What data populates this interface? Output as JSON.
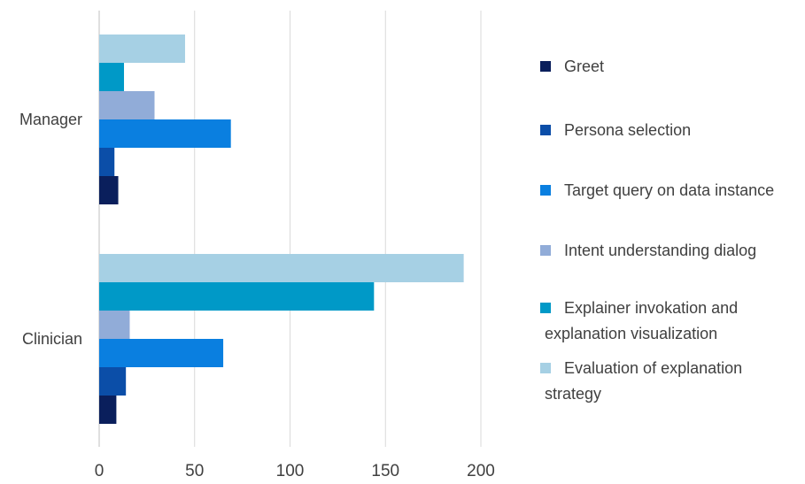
{
  "chart_data": {
    "type": "bar",
    "orientation": "horizontal",
    "categories": [
      "Manager",
      "Clinician"
    ],
    "series": [
      {
        "name": "Greet",
        "color": "#0a1f5c",
        "values": [
          10,
          9
        ]
      },
      {
        "name": "Persona selection",
        "color": "#0b4ea8",
        "values": [
          8,
          14
        ]
      },
      {
        "name": "Target query on data instance",
        "color": "#0a7fe0",
        "values": [
          69,
          65
        ]
      },
      {
        "name": "Intent understanding dialog",
        "color": "#91acd8",
        "values": [
          29,
          16
        ]
      },
      {
        "name": "Explainer invokation and explanation visualization",
        "color": "#0099c7",
        "values": [
          13,
          144
        ]
      },
      {
        "name": "Evaluation of explanation strategy",
        "color": "#a6d0e4",
        "values": [
          45,
          191
        ]
      }
    ],
    "legend_lines": [
      [
        "Greet"
      ],
      [
        "Persona selection"
      ],
      [
        "Target query on data instance"
      ],
      [
        "Intent understanding dialog"
      ],
      [
        "Explainer invokation and",
        "explanation visualization"
      ],
      [
        "Evaluation of explanation",
        "strategy"
      ]
    ],
    "xlim": [
      0,
      200
    ],
    "xticks": [
      0,
      50,
      100,
      150,
      200
    ],
    "grid": true,
    "legend_position": "right",
    "title": "",
    "xlabel": "",
    "ylabel": ""
  }
}
